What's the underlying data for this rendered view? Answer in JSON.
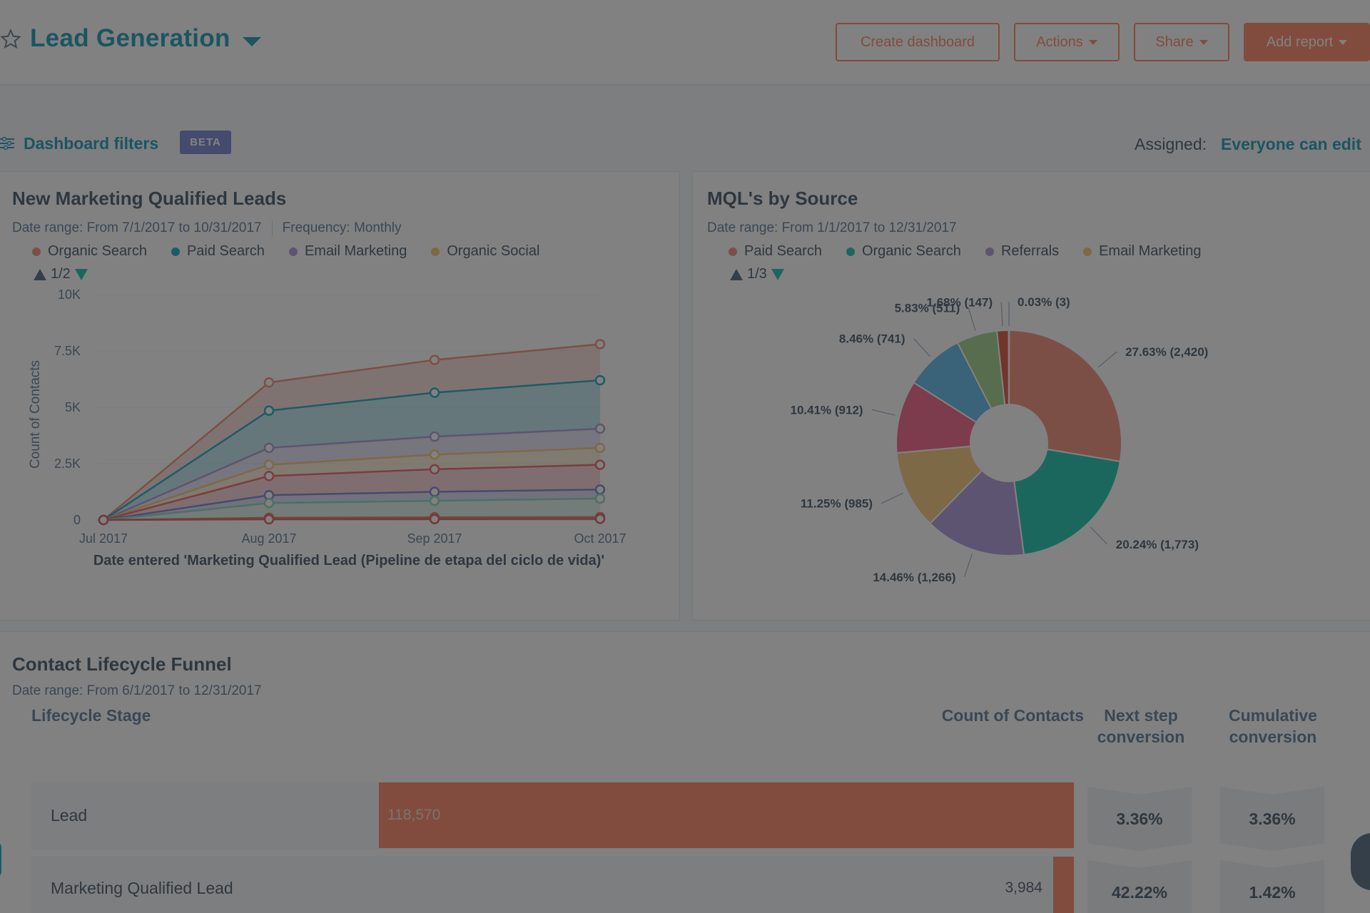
{
  "header": {
    "title": "Lead Generation",
    "buttons": {
      "create_dashboard": "Create dashboard",
      "actions": "Actions",
      "share": "Share",
      "add_report": "Add report"
    }
  },
  "filters": {
    "label": "Dashboard filters",
    "badge": "BETA",
    "assigned_label": "Assigned:",
    "assigned_value": "Everyone can edit"
  },
  "colors": {
    "brand_teal": "#0091ae",
    "accent_orange": "#ff7a59",
    "text": "#33475b"
  },
  "mql_card": {
    "title": "New Marketing Qualified Leads",
    "date_range": "Date range: From 7/1/2017 to 10/31/2017",
    "frequency": "Frequency: Monthly",
    "pager": "1/2",
    "x_caption": "Date entered 'Marketing Qualified Lead (Pipeline de etapa del ciclo de vida)'"
  },
  "source_card": {
    "title": "MQL's by Source",
    "date_range": "Date range: From 1/1/2017 to 12/31/2017",
    "pager": "1/3"
  },
  "chart_data": [
    {
      "type": "area",
      "title": "New Marketing Qualified Leads",
      "xlabel": "Date entered 'Marketing Qualified Lead (Pipeline de etapa del ciclo de vida)'",
      "ylabel": "Count of Contacts",
      "categories": [
        "Jul 2017",
        "Aug 2017",
        "Sep 2017",
        "Oct 2017"
      ],
      "y_ticks": [
        "0",
        "2.5K",
        "5K",
        "7.5K",
        "10K"
      ],
      "ylim": [
        0,
        10000
      ],
      "stacked": true,
      "grid": true,
      "legend": "top",
      "series": [
        {
          "name": "Organic Search",
          "color": "#f2836b",
          "cumulative": [
            0,
            6100,
            7100,
            7800
          ]
        },
        {
          "name": "Paid Search",
          "color": "#00a4bd",
          "cumulative": [
            0,
            4850,
            5650,
            6200
          ]
        },
        {
          "name": "Email Marketing",
          "color": "#a68fd8",
          "cumulative": [
            0,
            3200,
            3700,
            4050
          ]
        },
        {
          "name": "Organic Social",
          "color": "#f5c26b",
          "cumulative": [
            0,
            2450,
            2900,
            3200
          ]
        },
        {
          "color": "#f2545b",
          "cumulative": [
            0,
            1950,
            2250,
            2450
          ]
        },
        {
          "color": "#6a78d1",
          "cumulative": [
            0,
            1100,
            1250,
            1350
          ]
        },
        {
          "color": "#7fd1b9",
          "cumulative": [
            0,
            750,
            850,
            950
          ]
        },
        {
          "color": "#e66e50",
          "cumulative": [
            0,
            100,
            120,
            130
          ]
        },
        {
          "color": "#d94c53",
          "cumulative": [
            0,
            30,
            40,
            50
          ]
        }
      ]
    },
    {
      "type": "pie",
      "title": "MQL's by Source",
      "legend": "top",
      "slices": [
        {
          "label": "27.63% (2,420)",
          "name": "Paid Search",
          "percent": 27.63,
          "value": 2420,
          "color": "#f2836b"
        },
        {
          "label": "20.24% (1,773)",
          "name": "Organic Search",
          "percent": 20.24,
          "value": 1773,
          "color": "#00bda5"
        },
        {
          "label": "14.46% (1,266)",
          "name": "Referrals",
          "percent": 14.46,
          "value": 1266,
          "color": "#a68fd8"
        },
        {
          "label": "11.25% (985)",
          "name": "Email Marketing",
          "percent": 11.25,
          "value": 985,
          "color": "#f5c26b"
        },
        {
          "label": "10.41% (912)",
          "percent": 10.41,
          "value": 912,
          "color": "#f2547d"
        },
        {
          "label": "8.46% (741)",
          "percent": 8.46,
          "value": 741,
          "color": "#4fb1e8"
        },
        {
          "label": "5.83% (511)",
          "percent": 5.83,
          "value": 511,
          "color": "#97cd7e"
        },
        {
          "label": "1.68% (147)",
          "percent": 1.68,
          "value": 147,
          "color": "#d9432d"
        },
        {
          "label": "0.03% (3)",
          "percent": 0.03,
          "value": 3,
          "color": "#7a58bf"
        }
      ]
    }
  ],
  "funnel": {
    "title": "Contact Lifecycle Funnel",
    "date_range": "Date range: From 6/1/2017 to 12/31/2017",
    "columns": {
      "stage": "Lifecycle Stage",
      "count": "Count of Contacts",
      "next_step": "Next step conversion",
      "cumulative": "Cumulative conversion"
    },
    "rows": [
      {
        "stage": "Lead",
        "count": "118,570",
        "next_step": "3.36%",
        "cumulative": "3.36%"
      },
      {
        "stage": "Marketing Qualified Lead",
        "count": "3,984",
        "next_step": "42.22%",
        "cumulative": "1.42%"
      }
    ]
  }
}
